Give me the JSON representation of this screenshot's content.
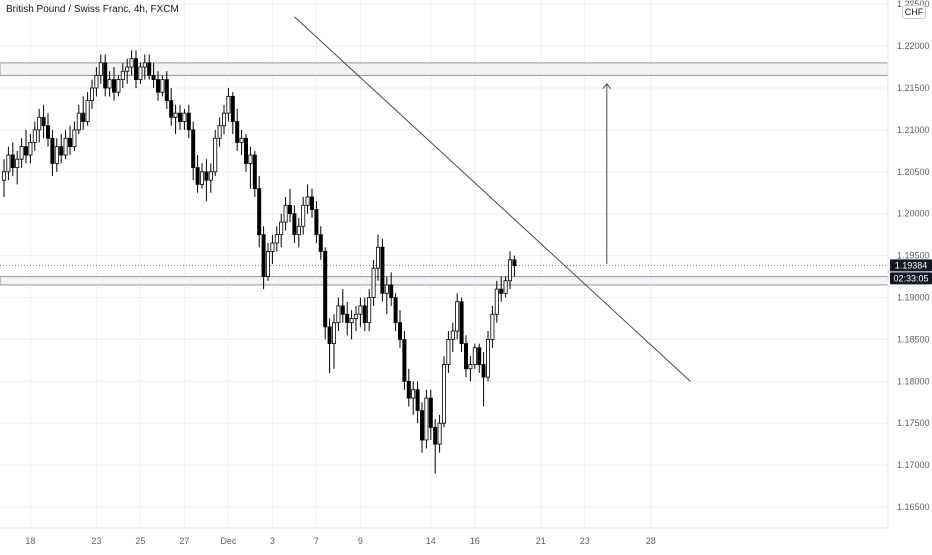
{
  "header": {
    "title": "British Pound / Swiss Franc, 4h, FXCM",
    "currency_button": "CHF"
  },
  "chart_data": {
    "type": "candlestick",
    "title": "British Pound / Swiss Franc, 4h, FXCM",
    "ylim": [
      1.1625,
      1.2255
    ],
    "y_ticks": [
      {
        "value": 1.225,
        "label": "1.22500"
      },
      {
        "value": 1.22,
        "label": "1.22000"
      },
      {
        "value": 1.215,
        "label": "1.21500"
      },
      {
        "value": 1.21,
        "label": "1.21000"
      },
      {
        "value": 1.205,
        "label": "1.20500"
      },
      {
        "value": 1.2,
        "label": "1.20000"
      },
      {
        "value": 1.195,
        "label": "1.19500"
      },
      {
        "value": 1.19,
        "label": "1.19000"
      },
      {
        "value": 1.185,
        "label": "1.18500"
      },
      {
        "value": 1.18,
        "label": "1.18000"
      },
      {
        "value": 1.175,
        "label": "1.17500"
      },
      {
        "value": 1.17,
        "label": "1.17000"
      },
      {
        "value": 1.165,
        "label": "1.16500"
      }
    ],
    "x_ticks": [
      {
        "bar": 6,
        "label": "18"
      },
      {
        "bar": 21,
        "label": "23"
      },
      {
        "bar": 31,
        "label": "25"
      },
      {
        "bar": 41,
        "label": "27"
      },
      {
        "bar": 51,
        "label": "Dec"
      },
      {
        "bar": 61,
        "label": "3"
      },
      {
        "bar": 71,
        "label": "7"
      },
      {
        "bar": 81,
        "label": "9"
      },
      {
        "bar": 97,
        "label": "14"
      },
      {
        "bar": 107,
        "label": "16"
      },
      {
        "bar": 122,
        "label": "21"
      },
      {
        "bar": 132,
        "label": "23"
      },
      {
        "bar": 147,
        "label": "28"
      }
    ],
    "candles": [
      [
        1.204,
        1.2065,
        1.202,
        1.205
      ],
      [
        1.205,
        1.208,
        1.204,
        1.207
      ],
      [
        1.207,
        1.2085,
        1.2045,
        1.2055
      ],
      [
        1.2055,
        1.2075,
        1.2035,
        1.2065
      ],
      [
        1.2065,
        1.209,
        1.2055,
        1.208
      ],
      [
        1.208,
        1.21,
        1.206,
        1.207
      ],
      [
        1.207,
        1.2095,
        1.206,
        1.2085
      ],
      [
        1.2085,
        1.211,
        1.2075,
        1.21
      ],
      [
        1.21,
        1.2125,
        1.2085,
        1.2115
      ],
      [
        1.2115,
        1.213,
        1.209,
        1.2105
      ],
      [
        1.2105,
        1.212,
        1.208,
        1.209
      ],
      [
        1.209,
        1.21,
        1.2045,
        1.206
      ],
      [
        1.206,
        1.209,
        1.205,
        1.208
      ],
      [
        1.208,
        1.2095,
        1.206,
        1.207
      ],
      [
        1.207,
        1.21,
        1.2065,
        1.209
      ],
      [
        1.209,
        1.2105,
        1.207,
        1.208
      ],
      [
        1.208,
        1.211,
        1.2075,
        1.21
      ],
      [
        1.21,
        1.213,
        1.2095,
        1.212
      ],
      [
        1.212,
        1.214,
        1.21,
        1.211
      ],
      [
        1.211,
        1.2145,
        1.2105,
        1.2135
      ],
      [
        1.2135,
        1.216,
        1.2125,
        1.215
      ],
      [
        1.215,
        1.2175,
        1.214,
        1.2165
      ],
      [
        1.2165,
        1.219,
        1.2155,
        1.218
      ],
      [
        1.218,
        1.219,
        1.214,
        1.215
      ],
      [
        1.215,
        1.217,
        1.214,
        1.216
      ],
      [
        1.216,
        1.2175,
        1.2135,
        1.2145
      ],
      [
        1.2145,
        1.2165,
        1.214,
        1.216
      ],
      [
        1.216,
        1.218,
        1.215,
        1.217
      ],
      [
        1.217,
        1.2185,
        1.2155,
        1.2175
      ],
      [
        1.2175,
        1.2195,
        1.2165,
        1.2185
      ],
      [
        1.2185,
        1.2195,
        1.215,
        1.216
      ],
      [
        1.216,
        1.218,
        1.2155,
        1.2175
      ],
      [
        1.2175,
        1.219,
        1.216,
        1.218
      ],
      [
        1.218,
        1.219,
        1.216,
        1.2165
      ],
      [
        1.2165,
        1.218,
        1.215,
        1.216
      ],
      [
        1.216,
        1.217,
        1.2135,
        1.2145
      ],
      [
        1.2145,
        1.2165,
        1.214,
        1.216
      ],
      [
        1.216,
        1.217,
        1.2125,
        1.2135
      ],
      [
        1.2135,
        1.215,
        1.2105,
        1.2115
      ],
      [
        1.2115,
        1.213,
        1.2095,
        1.212
      ],
      [
        1.212,
        1.213,
        1.21,
        1.211
      ],
      [
        1.211,
        1.2125,
        1.21,
        1.212
      ],
      [
        1.212,
        1.213,
        1.209,
        1.21
      ],
      [
        1.21,
        1.211,
        1.204,
        1.2055
      ],
      [
        1.2055,
        1.207,
        1.2025,
        1.2035
      ],
      [
        1.2035,
        1.206,
        1.203,
        1.205
      ],
      [
        1.205,
        1.2065,
        1.2015,
        1.204
      ],
      [
        1.204,
        1.206,
        1.2025,
        1.205
      ],
      [
        1.205,
        1.21,
        1.2045,
        1.209
      ],
      [
        1.209,
        1.2115,
        1.208,
        1.2105
      ],
      [
        1.2105,
        1.213,
        1.2095,
        1.212
      ],
      [
        1.212,
        1.215,
        1.211,
        1.214
      ],
      [
        1.214,
        1.2145,
        1.2095,
        1.211
      ],
      [
        1.211,
        1.2125,
        1.2075,
        1.2085
      ],
      [
        1.2085,
        1.21,
        1.207,
        1.209
      ],
      [
        1.209,
        1.2095,
        1.205,
        1.206
      ],
      [
        1.206,
        1.208,
        1.203,
        1.207
      ],
      [
        1.207,
        1.2075,
        1.202,
        1.203
      ],
      [
        1.203,
        1.2045,
        1.196,
        1.1975
      ],
      [
        1.1975,
        1.1985,
        1.191,
        1.1925
      ],
      [
        1.1925,
        1.1965,
        1.192,
        1.1955
      ],
      [
        1.1955,
        1.1975,
        1.194,
        1.1965
      ],
      [
        1.1965,
        1.1985,
        1.1955,
        1.1975
      ],
      [
        1.1975,
        1.2,
        1.196,
        1.199
      ],
      [
        1.199,
        1.202,
        1.198,
        1.201
      ],
      [
        1.201,
        1.203,
        1.199,
        1.2
      ],
      [
        1.2,
        1.201,
        1.1965,
        1.1975
      ],
      [
        1.1975,
        1.1995,
        1.196,
        1.1985
      ],
      [
        1.1985,
        1.202,
        1.1975,
        1.201
      ],
      [
        1.201,
        1.2035,
        1.2,
        1.202
      ],
      [
        1.202,
        1.203,
        1.1995,
        1.2005
      ],
      [
        1.2005,
        1.2015,
        1.1965,
        1.1975
      ],
      [
        1.1975,
        1.1985,
        1.1945,
        1.1955
      ],
      [
        1.1955,
        1.196,
        1.185,
        1.1865
      ],
      [
        1.1865,
        1.1875,
        1.181,
        1.1845
      ],
      [
        1.1845,
        1.188,
        1.1815,
        1.187
      ],
      [
        1.187,
        1.19,
        1.186,
        1.189
      ],
      [
        1.189,
        1.191,
        1.187,
        1.188
      ],
      [
        1.188,
        1.1895,
        1.1855,
        1.187
      ],
      [
        1.187,
        1.1885,
        1.185,
        1.1875
      ],
      [
        1.1875,
        1.189,
        1.186,
        1.188
      ],
      [
        1.188,
        1.19,
        1.1865,
        1.189
      ],
      [
        1.189,
        1.19,
        1.186,
        1.187
      ],
      [
        1.187,
        1.191,
        1.186,
        1.19
      ],
      [
        1.19,
        1.1945,
        1.189,
        1.1935
      ],
      [
        1.1935,
        1.1975,
        1.192,
        1.196
      ],
      [
        1.196,
        1.197,
        1.1895,
        1.1905
      ],
      [
        1.1905,
        1.1925,
        1.188,
        1.1915
      ],
      [
        1.1915,
        1.193,
        1.189,
        1.19
      ],
      [
        1.19,
        1.1905,
        1.186,
        1.187
      ],
      [
        1.187,
        1.1885,
        1.184,
        1.185
      ],
      [
        1.185,
        1.186,
        1.179,
        1.18
      ],
      [
        1.18,
        1.1815,
        1.177,
        1.178
      ],
      [
        1.178,
        1.18,
        1.176,
        1.179
      ],
      [
        1.179,
        1.18,
        1.175,
        1.1765
      ],
      [
        1.1765,
        1.1775,
        1.1715,
        1.173
      ],
      [
        1.173,
        1.179,
        1.172,
        1.178
      ],
      [
        1.178,
        1.179,
        1.173,
        1.1745
      ],
      [
        1.1745,
        1.1755,
        1.169,
        1.1725
      ],
      [
        1.1725,
        1.176,
        1.1715,
        1.175
      ],
      [
        1.175,
        1.183,
        1.1745,
        1.182
      ],
      [
        1.182,
        1.186,
        1.181,
        1.185
      ],
      [
        1.185,
        1.187,
        1.1835,
        1.186
      ],
      [
        1.186,
        1.1905,
        1.185,
        1.1895
      ],
      [
        1.1895,
        1.19,
        1.1835,
        1.1845
      ],
      [
        1.1845,
        1.1855,
        1.1805,
        1.1815
      ],
      [
        1.1815,
        1.183,
        1.18,
        1.182
      ],
      [
        1.182,
        1.1845,
        1.1815,
        1.184
      ],
      [
        1.184,
        1.1845,
        1.181,
        1.182
      ],
      [
        1.182,
        1.1835,
        1.177,
        1.1805
      ],
      [
        1.1805,
        1.186,
        1.18,
        1.185
      ],
      [
        1.185,
        1.189,
        1.184,
        1.188
      ],
      [
        1.188,
        1.192,
        1.187,
        1.191
      ],
      [
        1.191,
        1.1925,
        1.1895,
        1.1905
      ],
      [
        1.1905,
        1.1925,
        1.19,
        1.192
      ],
      [
        1.192,
        1.1955,
        1.191,
        1.1945
      ],
      [
        1.1945,
        1.195,
        1.1925,
        1.1938
      ]
    ],
    "resistance_zone": [
      1.2165,
      1.218
    ],
    "support_zone": [
      1.1915,
      1.1925
    ],
    "current_price": {
      "value": 1.19384,
      "label": "1.19384",
      "countdown": "02:33:05"
    },
    "trendline": [
      {
        "bar": 66,
        "price": 1.2235
      },
      {
        "bar": 156,
        "price": 1.18
      }
    ],
    "target_arrow": {
      "bar": 137,
      "from": 1.194,
      "to": 1.2155
    },
    "grid": true,
    "colors": {
      "candle": "#000000",
      "line": "#4a4a4a",
      "zone_fill": "#f2f3f5",
      "zone_border": "#9598a1",
      "grid": "#eef0f4",
      "price_tag": "#131722",
      "axis_text": "#5d606b"
    }
  }
}
